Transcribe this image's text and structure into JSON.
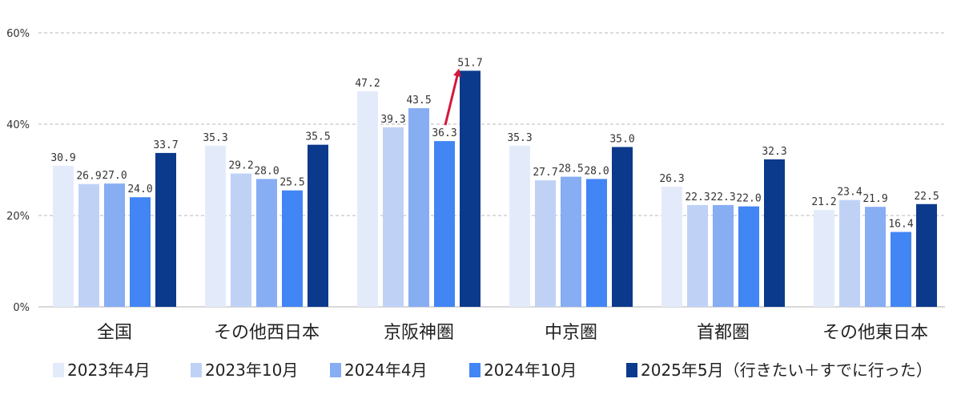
{
  "chart_data": {
    "type": "bar",
    "categories": [
      "全国",
      "その他西日本",
      "京阪神圏",
      "中京圏",
      "首都圏",
      "その他東日本"
    ],
    "series": [
      {
        "name": "2023年4月",
        "color": "#e3ebfb",
        "values": [
          30.9,
          35.3,
          47.2,
          35.3,
          26.3,
          21.2
        ]
      },
      {
        "name": "2023年10月",
        "color": "#bfd2f6",
        "values": [
          26.9,
          29.2,
          39.3,
          27.7,
          22.3,
          23.4
        ]
      },
      {
        "name": "2024年4月",
        "color": "#87adf3",
        "values": [
          27.0,
          28.0,
          43.5,
          28.5,
          22.3,
          21.9
        ]
      },
      {
        "name": "2024年10月",
        "color": "#4285f4",
        "values": [
          24.0,
          25.5,
          36.3,
          28.0,
          22.0,
          16.4
        ]
      },
      {
        "name": "2025年5月（行きたい＋すでに行った）",
        "color": "#0b3a8c",
        "values": [
          33.7,
          35.5,
          51.7,
          35.0,
          32.3,
          22.5
        ]
      }
    ],
    "y_ticks": [
      "0%",
      "20%",
      "40%",
      "60%"
    ],
    "y_tick_values": [
      0,
      20,
      40,
      60
    ],
    "ylim": [
      0,
      60
    ],
    "grid": true,
    "legend_position": "bottom",
    "annotation": {
      "type": "arrow",
      "color": "#d6173c",
      "category": "京阪神圏",
      "from_series": 3,
      "to_series": 4
    }
  }
}
